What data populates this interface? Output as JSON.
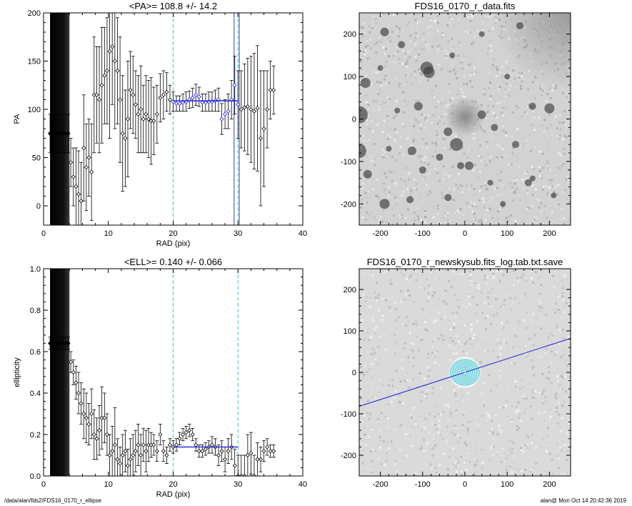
{
  "footer": {
    "left": "/data/alan/fds2/FDS16_0170_r_ellipse",
    "right": "alan@  Mon Oct 14 20:42:36 2019"
  },
  "colors": {
    "fit": "#2222dd",
    "guide": "#33cccc",
    "rings": "#77d8e0",
    "points": "#000000"
  },
  "chart_data": [
    {
      "id": "pa",
      "type": "scatter",
      "title": "<PA>= 108.8 +/-  14.2",
      "xlabel": "RAD (pix)",
      "ylabel": "PA",
      "xlim": [
        0,
        40
      ],
      "ylim": [
        -20,
        200
      ],
      "xticks": [
        0,
        10,
        20,
        30,
        40
      ],
      "yticks": [
        0,
        50,
        100,
        150,
        200
      ],
      "dark_band": [
        1,
        4
      ],
      "vlines": [
        20,
        30
      ],
      "fit": {
        "x": [
          20,
          30
        ],
        "y": 108.8
      },
      "fit_vlines": [
        29.4,
        30.2
      ],
      "series": [
        {
          "x": [
            1.0,
            1.4,
            1.8,
            2.2,
            2.6,
            3.0,
            3.4,
            3.8,
            4.2,
            4.6,
            5.0,
            5.4,
            5.8,
            6.2,
            6.6,
            7.0,
            7.4,
            7.8,
            8.2,
            8.6,
            9.0,
            9.4,
            9.8,
            10.2,
            10.6,
            11.0,
            11.4,
            11.8,
            12.2,
            12.6,
            13.0,
            13.4,
            13.8,
            14.2,
            14.6,
            15.0,
            15.4,
            15.8,
            16.2,
            16.6,
            17.0,
            17.5,
            18.0,
            18.5,
            19.0,
            19.5,
            20.0,
            20.5,
            21.0,
            21.5,
            22.0,
            22.5,
            23.0,
            23.5,
            24.0,
            24.5,
            25.0,
            25.5,
            26.0,
            26.5,
            27.0,
            27.5,
            28.0,
            28.5,
            29.0,
            29.5,
            30.0,
            30.5,
            31.0,
            31.5,
            32.0,
            32.5,
            33.0,
            33.5,
            34.0,
            34.5,
            35.0,
            35.5
          ],
          "y": [
            75,
            75,
            75,
            75,
            75,
            75,
            75,
            75,
            45,
            30,
            20,
            12,
            5,
            60,
            40,
            50,
            35,
            115,
            115,
            110,
            125,
            135,
            140,
            160,
            165,
            150,
            140,
            110,
            75,
            70,
            90,
            120,
            115,
            105,
            95,
            100,
            90,
            95,
            90,
            88,
            88,
            95,
            112,
            115,
            118,
            110,
            108,
            106,
            106,
            107,
            108,
            110,
            112,
            115,
            113,
            107,
            107,
            108,
            108,
            109,
            110,
            90,
            95,
            98,
            110,
            125,
            105,
            100,
            102,
            103,
            100,
            98,
            101,
            70,
            80,
            100,
            120,
            120
          ],
          "err": [
            20,
            20,
            20,
            20,
            20,
            20,
            20,
            20,
            25,
            30,
            40,
            45,
            40,
            55,
            45,
            40,
            50,
            60,
            50,
            55,
            60,
            50,
            55,
            90,
            60,
            70,
            55,
            65,
            60,
            50,
            60,
            40,
            40,
            35,
            40,
            45,
            35,
            40,
            40,
            45,
            35,
            30,
            25,
            25,
            20,
            15,
            10,
            8,
            8,
            9,
            10,
            9,
            10,
            11,
            10,
            9,
            9,
            10,
            10,
            11,
            12,
            16,
            15,
            18,
            20,
            30,
            35,
            40,
            45,
            50,
            55,
            60,
            65,
            70,
            60,
            40,
            30,
            25
          ]
        }
      ],
      "highlight_range": [
        20,
        30
      ]
    },
    {
      "id": "ell",
      "type": "scatter",
      "title": "<ELL>= 0.140 +/-  0.066",
      "xlabel": "RAD (pix)",
      "ylabel": "ellipticity",
      "xlim": [
        0,
        40
      ],
      "ylim": [
        0,
        1
      ],
      "xticks": [
        0,
        10,
        20,
        30,
        40
      ],
      "yticks": [
        0.0,
        0.2,
        0.4,
        0.6,
        0.8,
        1.0
      ],
      "dark_band": [
        1,
        4
      ],
      "vlines": [
        20,
        30
      ],
      "fit": {
        "x": [
          20,
          30
        ],
        "y": 0.14
      },
      "fit_vlines": [],
      "series": [
        {
          "x": [
            1.0,
            1.4,
            1.8,
            2.2,
            2.6,
            3.0,
            3.4,
            3.8,
            4.2,
            4.6,
            5.0,
            5.4,
            5.8,
            6.2,
            6.6,
            7.0,
            7.4,
            7.8,
            8.2,
            8.6,
            9.0,
            9.4,
            9.8,
            10.2,
            10.6,
            11.0,
            11.4,
            11.8,
            12.2,
            12.6,
            13.0,
            13.4,
            13.8,
            14.2,
            14.6,
            15.0,
            15.4,
            15.8,
            16.2,
            16.6,
            17.0,
            17.5,
            18.0,
            18.5,
            19.0,
            19.5,
            20.0,
            20.5,
            21.0,
            21.5,
            22.0,
            22.5,
            23.0,
            23.5,
            24.0,
            24.5,
            25.0,
            25.5,
            26.0,
            26.5,
            27.0,
            27.5,
            28.0,
            28.5,
            29.0,
            29.5,
            30.0,
            30.5,
            31.0,
            31.5,
            32.0,
            32.5,
            33.0,
            33.5,
            34.0,
            34.5,
            35.0,
            35.5
          ],
          "y": [
            0.64,
            0.64,
            0.64,
            0.64,
            0.64,
            0.64,
            0.64,
            0.64,
            0.55,
            0.5,
            0.45,
            0.4,
            0.35,
            0.3,
            0.28,
            0.25,
            0.3,
            0.2,
            0.18,
            0.22,
            0.28,
            0.28,
            0.2,
            0.1,
            0.12,
            0.15,
            0.08,
            0.06,
            0.1,
            0.12,
            0.05,
            0.08,
            0.1,
            0.12,
            0.15,
            0.1,
            0.15,
            0.12,
            0.15,
            0.15,
            0.15,
            0.12,
            0.2,
            0.12,
            0.1,
            0.15,
            0.14,
            0.15,
            0.18,
            0.2,
            0.21,
            0.22,
            0.2,
            0.15,
            0.12,
            0.12,
            0.13,
            0.14,
            0.15,
            0.14,
            0.1,
            0.12,
            0.08,
            0.12,
            0.14,
            0.05,
            0.0,
            0.0,
            0.0,
            0.1,
            0.11,
            0.0,
            0.08,
            0.08,
            0.12,
            0.14,
            0.12,
            0.12
          ],
          "err": [
            0.03,
            0.03,
            0.03,
            0.03,
            0.03,
            0.03,
            0.03,
            0.03,
            0.05,
            0.06,
            0.08,
            0.1,
            0.1,
            0.12,
            0.12,
            0.1,
            0.12,
            0.12,
            0.1,
            0.12,
            0.15,
            0.12,
            0.1,
            0.1,
            0.12,
            0.18,
            0.1,
            0.08,
            0.1,
            0.1,
            0.08,
            0.1,
            0.1,
            0.1,
            0.1,
            0.1,
            0.08,
            0.1,
            0.08,
            0.06,
            0.05,
            0.05,
            0.05,
            0.05,
            0.04,
            0.03,
            0.03,
            0.03,
            0.03,
            0.03,
            0.03,
            0.03,
            0.03,
            0.03,
            0.03,
            0.03,
            0.03,
            0.03,
            0.04,
            0.04,
            0.05,
            0.05,
            0.06,
            0.06,
            0.06,
            0.08,
            0.1,
            0.1,
            0.1,
            0.1,
            0.1,
            0.1,
            0.08,
            0.06,
            0.05,
            0.04,
            0.03,
            0.03
          ]
        }
      ],
      "highlight_range": []
    },
    {
      "id": "img1",
      "type": "heatmap",
      "title": "FDS16_0170_r_data.fits",
      "xlim": [
        -250,
        250
      ],
      "ylim": [
        -250,
        250
      ],
      "xticks": [
        -200,
        -100,
        0,
        100,
        200
      ],
      "yticks": [
        -200,
        -100,
        0,
        100,
        200
      ],
      "colormap": "grayscale-inverted"
    },
    {
      "id": "img2",
      "type": "heatmap",
      "title": "FDS16_0170_r_newskysub.fits_log.tab.txt.save",
      "xlim": [
        -250,
        250
      ],
      "ylim": [
        -250,
        250
      ],
      "xticks": [
        -200,
        -100,
        0,
        100,
        200
      ],
      "yticks": [
        -200,
        -100,
        0,
        100,
        200
      ],
      "colormap": "grayscale-inverted",
      "line": {
        "x": [
          -250,
          250
        ],
        "y": [
          -82,
          82
        ]
      }
    }
  ]
}
